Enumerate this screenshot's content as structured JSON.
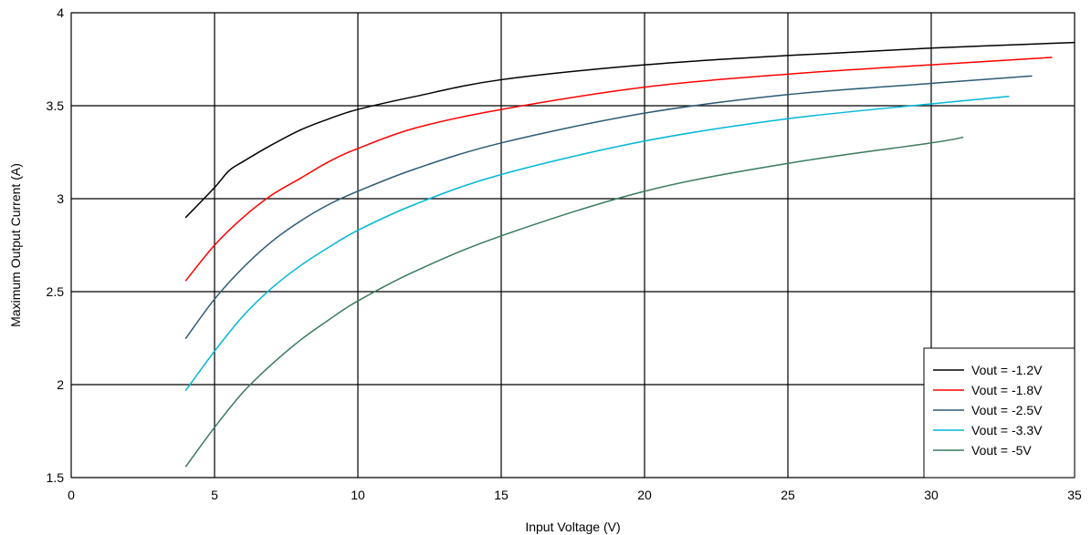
{
  "chart_data": {
    "type": "line",
    "title": "",
    "xlabel": "Input Voltage (V)",
    "ylabel": "Maximum Output Current (A)",
    "xlim": [
      0,
      35
    ],
    "ylim": [
      1.5,
      4
    ],
    "x_ticks": [
      0,
      5,
      10,
      15,
      20,
      25,
      30,
      35
    ],
    "y_ticks": [
      1.5,
      2,
      2.5,
      3,
      3.5,
      4
    ],
    "x_tick_labels": [
      "0",
      "5",
      "10",
      "15",
      "20",
      "25",
      "30",
      "35"
    ],
    "y_tick_labels": [
      "1.5",
      "2",
      "2.5",
      "3",
      "3.5",
      "4"
    ],
    "grid": true,
    "legend_position": "bottom-right",
    "series": [
      {
        "name": "Vout = -1.2V",
        "color": "#000000",
        "x": [
          4,
          5,
          5.5,
          6,
          7,
          8,
          9,
          10,
          12,
          15,
          20,
          25,
          30,
          35
        ],
        "y": [
          2.9,
          3.06,
          3.15,
          3.2,
          3.29,
          3.37,
          3.43,
          3.48,
          3.55,
          3.64,
          3.72,
          3.77,
          3.81,
          3.84
        ]
      },
      {
        "name": "Vout = -1.8V",
        "color": "#ff0000",
        "x": [
          4,
          5,
          6,
          7,
          8,
          9,
          10,
          12,
          15,
          20,
          25,
          30,
          34.2
        ],
        "y": [
          2.56,
          2.75,
          2.9,
          3.02,
          3.11,
          3.2,
          3.27,
          3.38,
          3.48,
          3.6,
          3.67,
          3.72,
          3.76
        ]
      },
      {
        "name": "Vout = -2.5V",
        "color": "#2c5a74",
        "x": [
          4,
          5,
          6,
          7,
          8,
          9,
          10,
          12,
          15,
          20,
          25,
          30,
          33.5
        ],
        "y": [
          2.25,
          2.46,
          2.63,
          2.77,
          2.88,
          2.97,
          3.04,
          3.16,
          3.3,
          3.46,
          3.56,
          3.62,
          3.66
        ]
      },
      {
        "name": "Vout = -3.3V",
        "color": "#00b7d6",
        "x": [
          4,
          5,
          6,
          7,
          8,
          9,
          10,
          12,
          15,
          20,
          25,
          30,
          32.7
        ],
        "y": [
          1.97,
          2.18,
          2.37,
          2.52,
          2.64,
          2.74,
          2.83,
          2.97,
          3.13,
          3.31,
          3.43,
          3.51,
          3.55
        ]
      },
      {
        "name": "Vout = -5V",
        "color": "#3a7a5c",
        "x": [
          4,
          5,
          6,
          7,
          8,
          9,
          10,
          12,
          15,
          20,
          25,
          30,
          31.1
        ],
        "y": [
          1.56,
          1.77,
          1.96,
          2.11,
          2.24,
          2.35,
          2.45,
          2.61,
          2.8,
          3.04,
          3.19,
          3.3,
          3.33
        ]
      }
    ]
  }
}
